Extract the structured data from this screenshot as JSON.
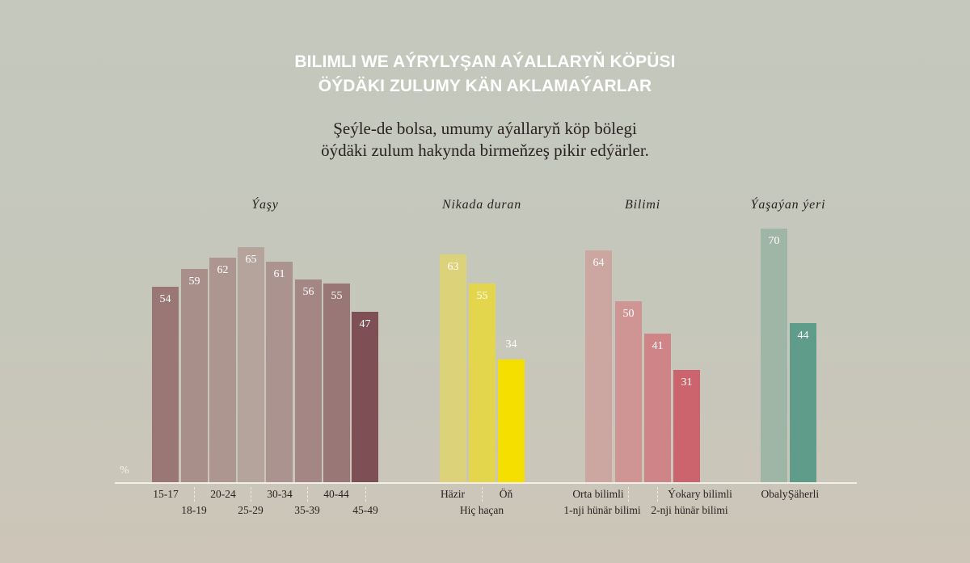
{
  "header": {
    "title_line1": "BILIMLI WE AÝRYLYŞAN AÝALLARYŇ KÖPÜSI",
    "title_line2": "ÖÝDÄKI ZULUMY KÄN AKLAMAÝARLAR",
    "subtitle_line1": "Şeýle-de bolsa, umumy aýallaryň köp bölegi",
    "subtitle_line2": "öýdäki zulum hakynda birmeňzeş pikir edýärler."
  },
  "axis": {
    "unit_label": "%"
  },
  "groups": [
    {
      "title": "Ýaşy"
    },
    {
      "title": "Nikada duran"
    },
    {
      "title": "Bilimi"
    },
    {
      "title": "Ýaşaýan ýeri"
    }
  ],
  "bars": [
    {
      "value": "54",
      "label": "15-17"
    },
    {
      "value": "59",
      "label": "18-19"
    },
    {
      "value": "62",
      "label": "20-24"
    },
    {
      "value": "65",
      "label": "25-29"
    },
    {
      "value": "61",
      "label": "30-34"
    },
    {
      "value": "56",
      "label": "35-39"
    },
    {
      "value": "55",
      "label": "40-44"
    },
    {
      "value": "47",
      "label": "45-49"
    },
    {
      "value": "63",
      "label": "Häzir"
    },
    {
      "value": "55",
      "label": "Hiç haçan"
    },
    {
      "value": "34",
      "label": "Öň"
    },
    {
      "value": "64",
      "label": "Orta bilimli"
    },
    {
      "value": "50",
      "label": "1-nji hünär bilimi"
    },
    {
      "value": "41",
      "label": "2-nji hünär bilimi"
    },
    {
      "value": "31",
      "label": "Ýokary bilimli"
    },
    {
      "value": "70",
      "label": "Obaly"
    },
    {
      "value": "44",
      "label": "Şäherli"
    }
  ],
  "colors": {
    "age": [
      "#9a7675",
      "#a88f8a",
      "#ad9690",
      "#b4a49c",
      "#ab9490",
      "#a48784",
      "#9a7777",
      "#7e4f54"
    ],
    "marital": [
      "#dcd27a",
      "#e3d64d",
      "#f5df00"
    ],
    "education": [
      "#cca6a1",
      "#cf9595",
      "#cf8487",
      "#cc646d"
    ],
    "residence": [
      "#9fb5a5",
      "#5f9c8a"
    ]
  },
  "chart_data": {
    "type": "bar",
    "title": "BILIMLI WE AÝRYLYŞAN AÝALLARYŇ KÖPÜSI ÖÝDÄKI ZULUMY KÄN AKLAMAÝARLAR",
    "subtitle": "Şeýle-de bolsa, umumy aýallaryň köp bölegi öýdäki zulum hakynda birmeňzeş pikir edýärler.",
    "ylabel": "%",
    "xlabel": "",
    "ylim": [
      0,
      70
    ],
    "grid": false,
    "legend": "none",
    "groups": [
      {
        "name": "Ýaşy",
        "categories": [
          "15-17",
          "18-19",
          "20-24",
          "25-29",
          "30-34",
          "35-39",
          "40-44",
          "45-49"
        ],
        "values": [
          54,
          59,
          62,
          65,
          61,
          56,
          55,
          47
        ]
      },
      {
        "name": "Nikada duran",
        "categories": [
          "Häzir",
          "Hiç haçan",
          "Öň"
        ],
        "values": [
          63,
          55,
          34
        ]
      },
      {
        "name": "Bilimi",
        "categories": [
          "Orta bilimli",
          "1-nji hünär bilimi",
          "2-nji hünär bilimi",
          "Ýokary bilimli"
        ],
        "values": [
          64,
          50,
          41,
          31
        ]
      },
      {
        "name": "Ýaşaýan ýeri",
        "categories": [
          "Obaly",
          "Şäherli"
        ],
        "values": [
          70,
          44
        ]
      }
    ]
  }
}
